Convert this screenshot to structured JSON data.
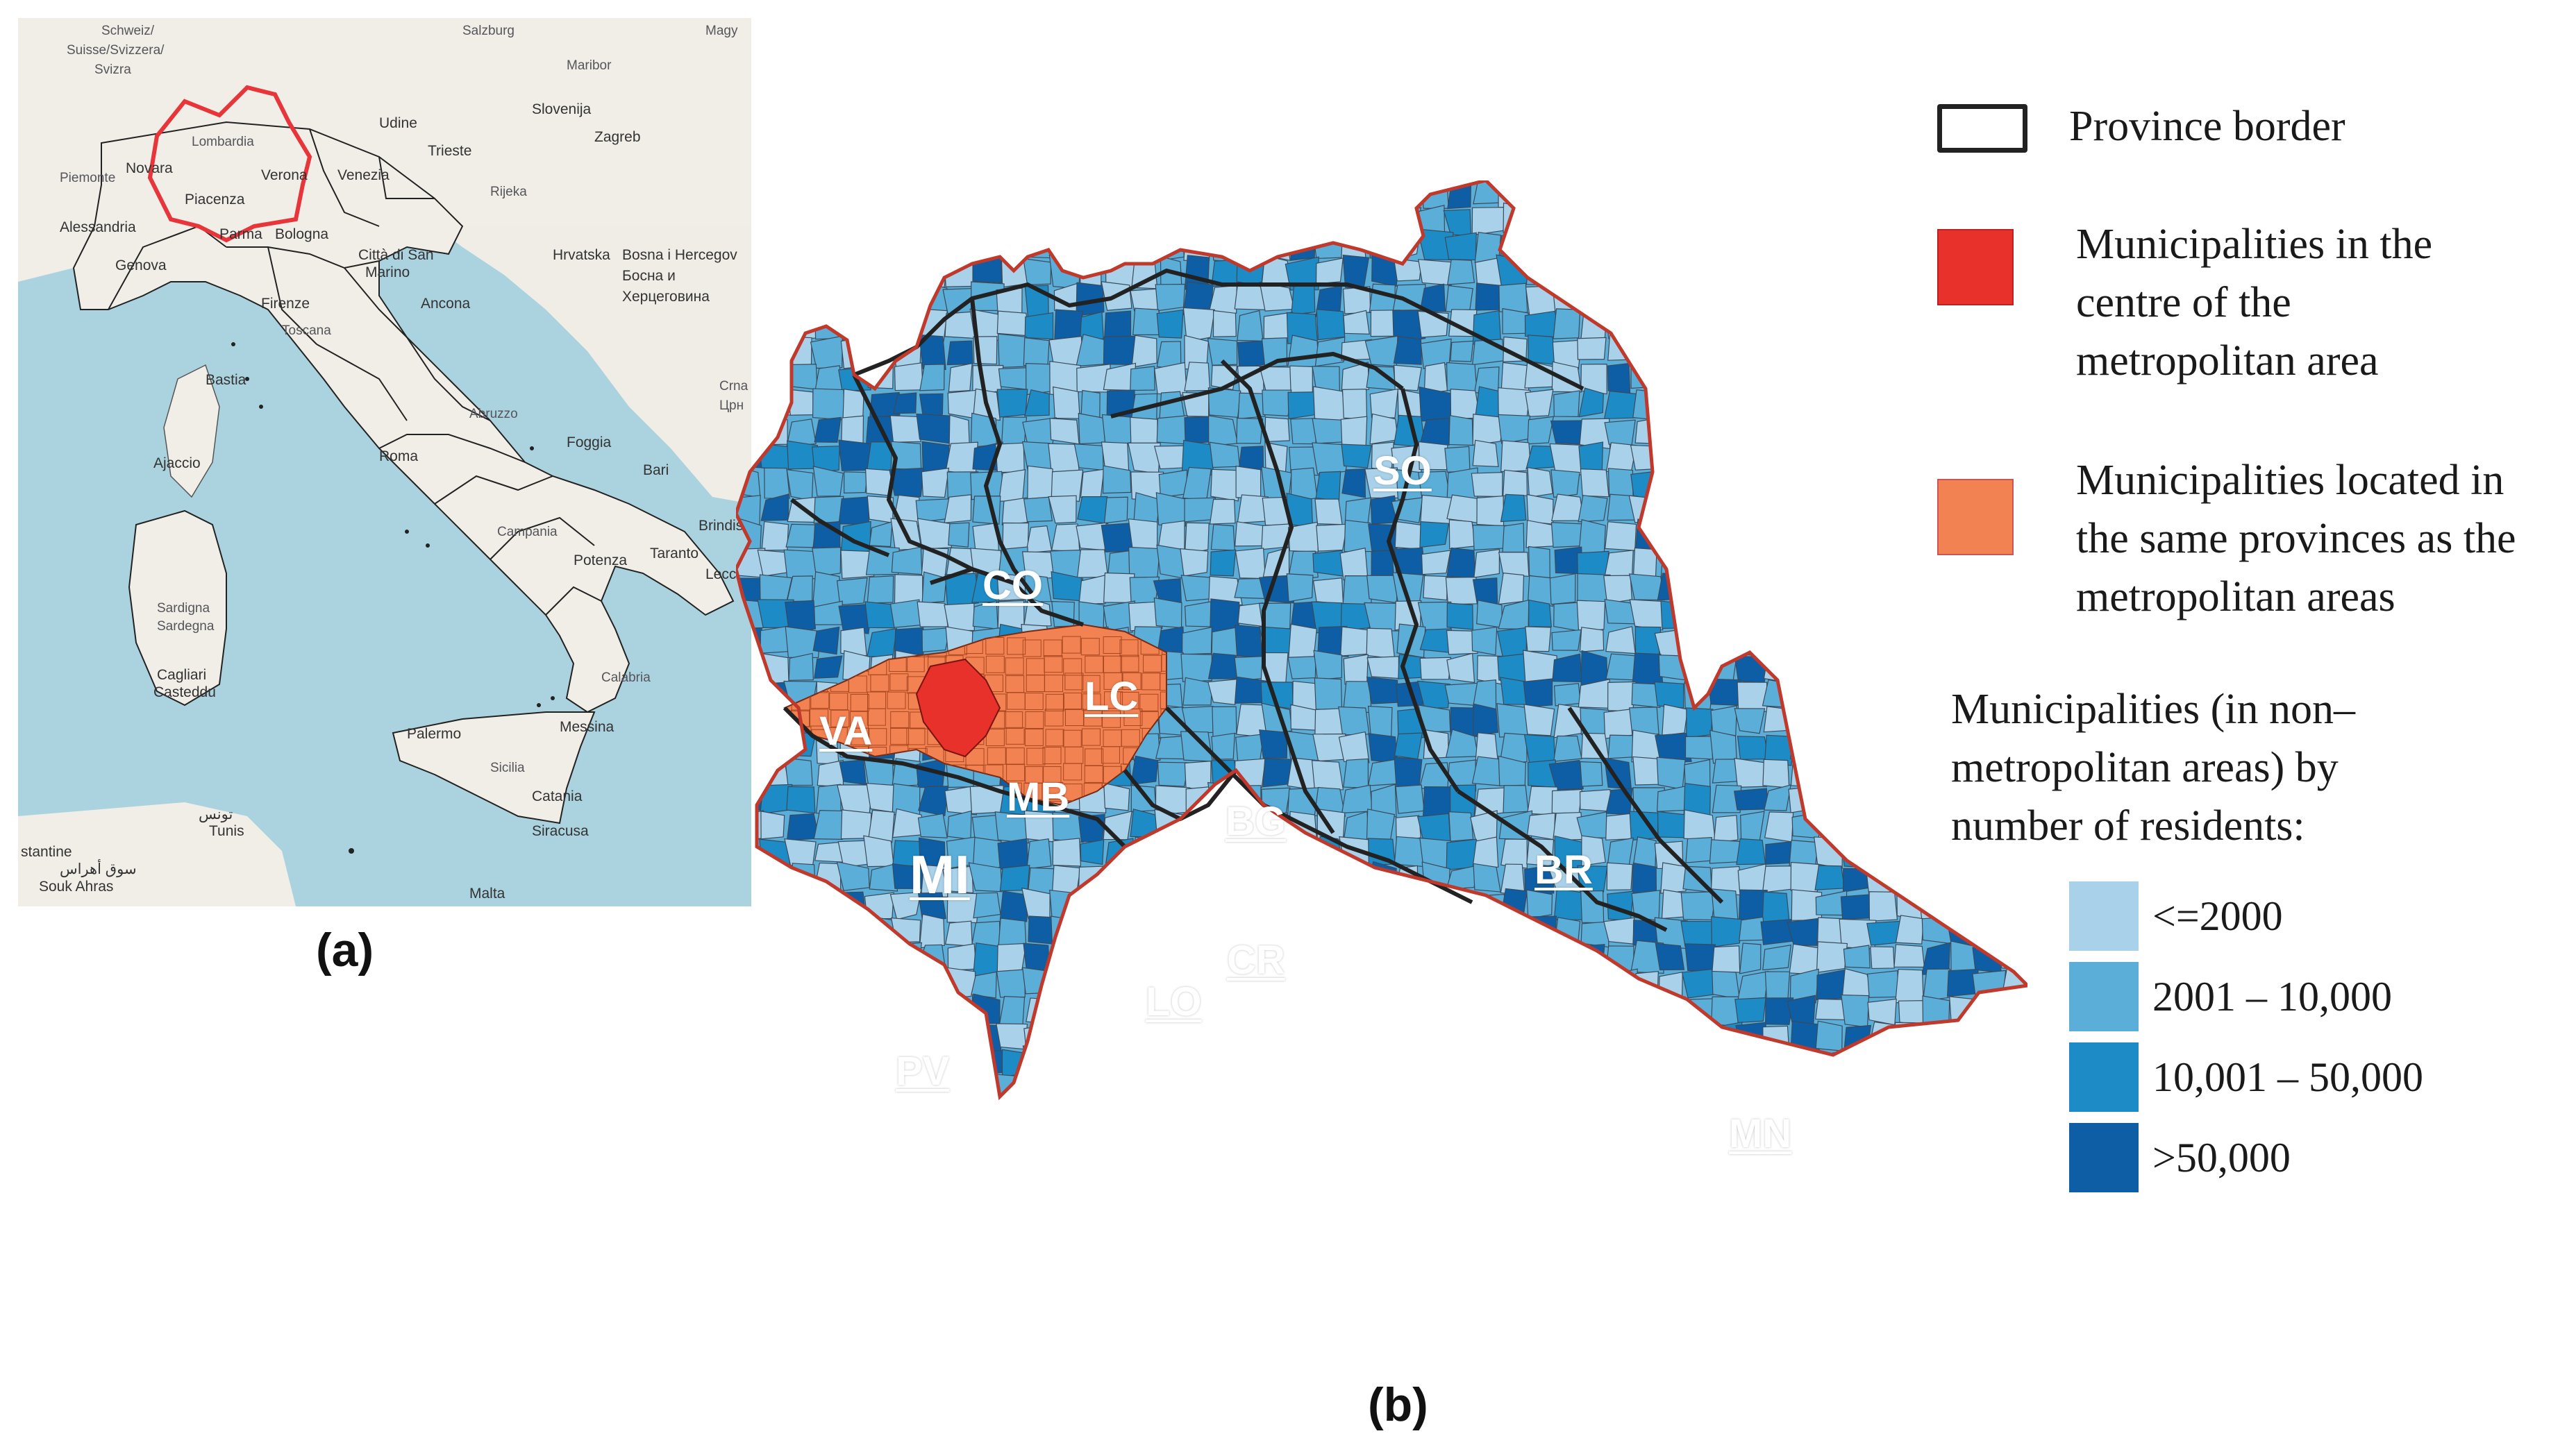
{
  "figure": {
    "caption_a": "(a)",
    "caption_b": "(b)"
  },
  "panel_a": {
    "basemap_labels": {
      "schweiz": "Schweiz/",
      "suisse": "Suisse/Svizzera/",
      "svizra": "Svizra",
      "salzburg": "Salzburg",
      "magy": "Magy",
      "slovenija": "Slovenija",
      "zagreb": "Zagreb",
      "maribor": "Maribor",
      "udine": "Udine",
      "trieste": "Trieste",
      "venezia": "Venezia",
      "verona": "Verona",
      "novara": "Novara",
      "piacenza": "Piacenza",
      "parma": "Parma",
      "bologna": "Bologna",
      "genova": "Genova",
      "alessandria": "Alessandria",
      "piemonte": "Piemonte",
      "lombardia": "Lombardia",
      "hrvatska": "Hrvatska",
      "bosna": "Bosna i Hercegov",
      "bosna_cyr": "Босна и",
      "hercegovina_cyr": "Херцеговина",
      "rijeka": "Rijeka",
      "citta_sm": "Città di San",
      "marino": "Marino",
      "firenze": "Firenze",
      "toscana": "Toscana",
      "ancona": "Ancona",
      "crna": "Crna",
      "crn": "Црн",
      "bastia": "Bastia",
      "ajaccio": "Ajaccio",
      "roma": "Roma",
      "abruzzo": "Abruzzo",
      "foggia": "Foggia",
      "bari": "Bari",
      "brindisi": "Brindisi",
      "taranto": "Taranto",
      "lecce": "Lecce",
      "potenza": "Potenza",
      "campania": "Campania",
      "sardigna": "Sardigna",
      "sardegna": "Sardegna",
      "cagliari": "Cagliari",
      "casteddu": "Casteddu",
      "palermo": "Palermo",
      "messina": "Messina",
      "calabria": "Calabria",
      "sicilia": "Sicilia",
      "catania": "Catania",
      "siracusa": "Siracusa",
      "tunis_ar": "تونس",
      "tunis": "Tunis",
      "stantine": "stantine",
      "souk_ahras": "Souk Ahras",
      "souk_ar": "سوق أهراس",
      "malta": "Malta"
    },
    "highlight_color": "#e8353a",
    "sea_color": "#abd3df",
    "land_color": "#f1eee8"
  },
  "panel_b": {
    "provinces": [
      {
        "code": "SO"
      },
      {
        "code": "CO"
      },
      {
        "code": "LC"
      },
      {
        "code": "VA"
      },
      {
        "code": "MB"
      },
      {
        "code": "BG"
      },
      {
        "code": "BR"
      },
      {
        "code": "MI"
      },
      {
        "code": "CR"
      },
      {
        "code": "LO"
      },
      {
        "code": "PV"
      },
      {
        "code": "MN"
      }
    ],
    "colors": {
      "lte_2000": "#a9d2ea",
      "r2001_10000": "#5baed8",
      "r10001_50000": "#1d8cc6",
      "gt_50000": "#0e5ea6",
      "metro_centre": "#e8312a",
      "metro_province": "#f28252",
      "border": "#222222",
      "outline": "#c0392b"
    }
  },
  "legend": {
    "province_border": "Province border",
    "centre_lines": [
      "Municipalities in the",
      "centre of the",
      "metropolitan area"
    ],
    "same_prov_lines": [
      "Municipalities located in",
      "the same provinces as the",
      "metropolitan areas"
    ],
    "heading_lines": [
      "Municipalities (in non–",
      "metropolitan areas) by",
      "number of residents:"
    ],
    "classes": [
      {
        "label": "<=2000",
        "color": "#a9d2ea"
      },
      {
        "label": "2001 – 10,000",
        "color": "#5baed8"
      },
      {
        "label": "10,001 – 50,000",
        "color": "#1d8cc6"
      },
      {
        "label": ">50,000",
        "color": "#0e5ea6"
      }
    ]
  }
}
